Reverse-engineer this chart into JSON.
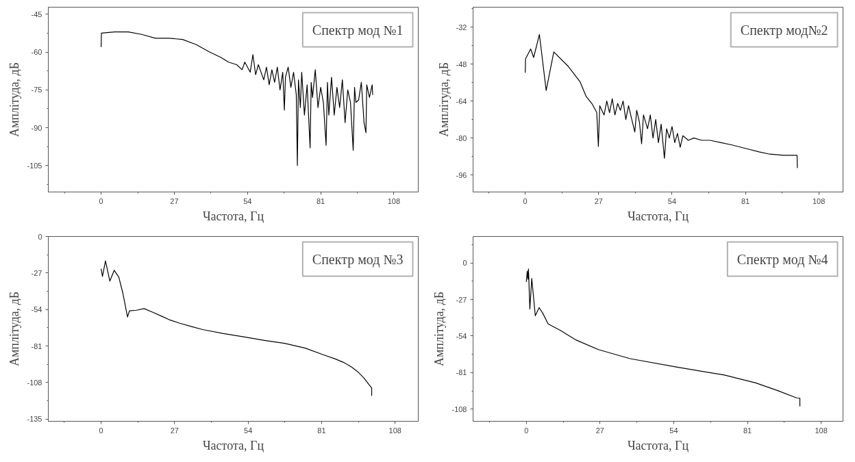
{
  "chart_data": [
    {
      "type": "line",
      "title": "Спектр мод №1",
      "xlabel": "Частота, Гц",
      "ylabel": "Амплітуда, дБ",
      "xlim": [
        -19.5,
        117
      ],
      "ylim": [
        -115.5,
        -42.2
      ],
      "xticks": [
        0,
        27,
        54,
        81,
        108
      ],
      "yticks": [
        -45,
        -60,
        -75,
        -90,
        -105
      ],
      "grid": false,
      "series": [
        {
          "color": "#000000",
          "x": [
            0,
            0.1,
            5,
            10,
            15,
            20,
            25,
            30,
            35,
            40,
            44,
            47,
            50,
            52,
            53,
            55,
            56,
            57,
            58,
            60,
            61,
            62,
            63,
            64,
            65,
            66,
            67,
            67.6,
            68,
            69,
            70,
            71,
            72,
            72.4,
            72.8,
            73.5,
            74,
            75,
            76,
            77.1,
            77.5,
            78,
            79,
            80,
            81,
            82,
            83,
            83.5,
            84,
            85,
            86,
            87,
            88,
            89,
            90,
            91,
            92,
            93,
            93.5,
            94,
            95,
            96,
            97,
            97.7,
            98,
            99,
            100,
            100.2
          ],
          "values": [
            -58,
            -52.5,
            -52,
            -52,
            -53,
            -54.5,
            -54.5,
            -55,
            -57,
            -60,
            -62,
            -64,
            -65,
            -67,
            -64,
            -68,
            -61,
            -69,
            -65,
            -71,
            -66,
            -73,
            -67,
            -72,
            -66,
            -75,
            -68,
            -83,
            -70,
            -66,
            -74,
            -68,
            -77,
            -105,
            -71,
            -82,
            -68,
            -85,
            -73,
            -98,
            -72,
            -78,
            -67,
            -82,
            -74,
            -80,
            -97,
            -72,
            -85,
            -70,
            -85,
            -74,
            -82,
            -71,
            -88,
            -75,
            -80,
            -99,
            -74,
            -80,
            -79,
            -72,
            -88,
            -92,
            -73,
            -78,
            -73,
            -77
          ]
        }
      ]
    },
    {
      "type": "line",
      "title": "Спектр мод№2",
      "xlabel": "Частота, Гц",
      "ylabel": "Амплітуда, дБ",
      "xlim": [
        -19.2,
        116.9
      ],
      "ylim": [
        -103.4,
        -23.3
      ],
      "xticks": [
        0,
        27,
        54,
        81,
        108
      ],
      "yticks": [
        -32,
        -48,
        -64,
        -80,
        -96
      ],
      "grid": false,
      "series": [
        {
          "color": "#000000",
          "x": [
            0,
            0.1,
            2,
            3.1,
            5.2,
            7.7,
            10.5,
            15.7,
            20.2,
            22.4,
            24.7,
            26.3,
            26.9,
            27.4,
            29,
            30,
            31,
            32,
            33,
            34,
            35,
            36,
            37,
            38,
            39,
            40.3,
            41,
            42,
            42.8,
            43.5,
            45,
            46,
            47,
            48,
            49,
            50,
            51.2,
            52,
            53,
            54,
            55,
            56,
            57,
            58,
            60,
            62,
            65,
            68,
            72,
            76,
            81,
            86,
            90,
            95,
            100,
            100.1
          ],
          "values": [
            -51.7,
            -45.7,
            -41.4,
            -45.1,
            -35.1,
            -59.4,
            -42.7,
            -48.8,
            -55.7,
            -62,
            -65.4,
            -68.9,
            -83.7,
            -66,
            -70,
            -64,
            -69,
            -63,
            -70,
            -65,
            -68,
            -64,
            -72,
            -66,
            -71,
            -77.4,
            -68,
            -73,
            -82.5,
            -70,
            -76,
            -70,
            -80,
            -72,
            -82,
            -74,
            -88.8,
            -76,
            -80,
            -75,
            -82,
            -78,
            -84,
            -79,
            -81,
            -80,
            -81,
            -81,
            -82,
            -83,
            -84.5,
            -86,
            -87,
            -87.5,
            -87.5,
            -93
          ]
        }
      ]
    },
    {
      "type": "line",
      "title": "Спектр мод №3",
      "xlabel": "Частота, Гц",
      "ylabel": "Амплітуда, дБ",
      "xlim": [
        -19.4,
        116.5
      ],
      "ylim": [
        -136.6,
        0
      ],
      "xticks": [
        0,
        27,
        54,
        81,
        108
      ],
      "yticks": [
        0,
        -27,
        -54,
        -81,
        -108,
        -135
      ],
      "grid": false,
      "series": [
        {
          "color": "#000000",
          "x": [
            0,
            0.5,
            1.6,
            3.2,
            4.8,
            6.5,
            8,
            9.7,
            10.4,
            13,
            15.8,
            19,
            22.3,
            25,
            28.7,
            33,
            37.3,
            45,
            53.5,
            60,
            67.4,
            75,
            81.4,
            86,
            89,
            92,
            94.3,
            96.5,
            98.6,
            99.4,
            99.4
          ],
          "values": [
            -23.8,
            -29.5,
            -18,
            -33,
            -25,
            -30,
            -42,
            -59.5,
            -55,
            -54.5,
            -53.3,
            -56,
            -59,
            -61.5,
            -64,
            -66.5,
            -68.8,
            -71.8,
            -74.6,
            -76.8,
            -79,
            -82.5,
            -87.3,
            -90.5,
            -93,
            -96.5,
            -100,
            -104.5,
            -110,
            -112,
            -117.7
          ]
        }
      ]
    },
    {
      "type": "line",
      "title": "Спектр мод №4",
      "xlabel": "Частота, Гц",
      "ylabel": "Амплітуда, дБ",
      "xlim": [
        -19.5,
        116
      ],
      "ylim": [
        -117,
        19.6
      ],
      "xticks": [
        0,
        27,
        54,
        81,
        108
      ],
      "yticks": [
        0,
        -27,
        -54,
        -81,
        -108
      ],
      "grid": false,
      "series": [
        {
          "color": "#000000",
          "x": [
            0,
            0.35,
            0.6,
            0.8,
            1.3,
            2,
            3.3,
            4.7,
            6,
            8,
            12.6,
            18.3,
            26.4,
            38,
            55.2,
            72.5,
            84,
            92.2,
            99.1,
            100.2,
            100.2
          ],
          "values": [
            -14,
            -6,
            -12,
            -4.4,
            -34,
            -11.4,
            -39,
            -33,
            -37,
            -45,
            -50,
            -57,
            -64,
            -70.7,
            -77,
            -82.8,
            -88.6,
            -94.4,
            -99.8,
            -100,
            -106
          ]
        }
      ]
    }
  ]
}
